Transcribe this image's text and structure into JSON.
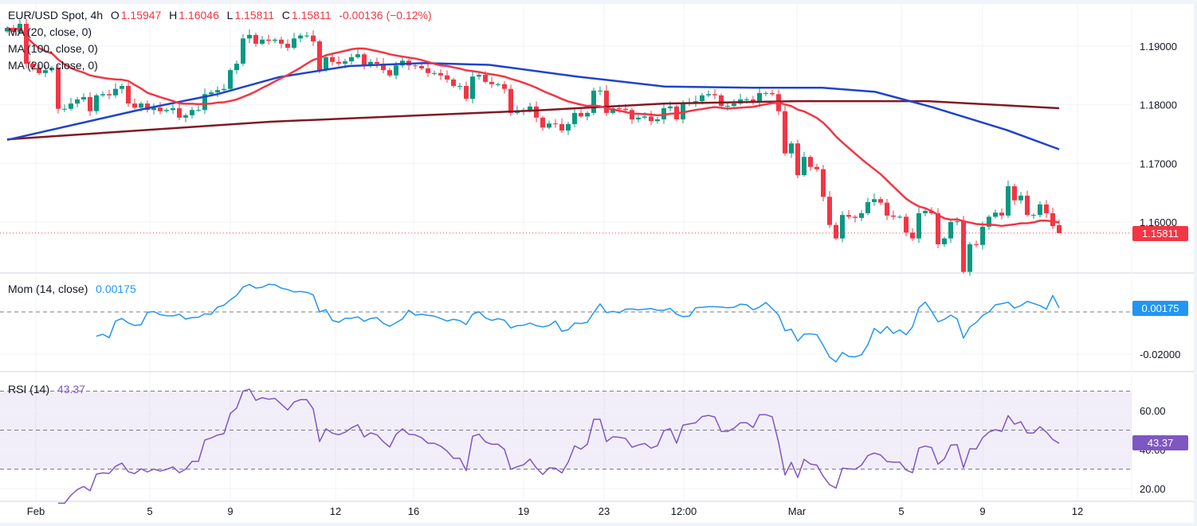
{
  "header": {
    "symbol": "EUR/USD Spot, 4h",
    "o_label": "O",
    "o_value": "1.15947",
    "h_label": "H",
    "h_value": "1.16046",
    "l_label": "L",
    "l_value": "1.15811",
    "c_label": "C",
    "c_value": "1.15811",
    "change": "-0.00136 (−0.12%)"
  },
  "indicators": {
    "ma20": "MA (20, close, 0)",
    "ma100": "MA (100, close, 0)",
    "ma200": "MA (200, close, 0)",
    "mom_label": "Mom (14, close)",
    "mom_value": "0.00175",
    "rsi_label": "RSI (14)",
    "rsi_value": "43.37"
  },
  "price_axis": [
    "1.19000",
    "1.18000",
    "1.17000",
    "1.16000"
  ],
  "last_price_tag": "1.15811",
  "mom_axis": [
    "-0.02000"
  ],
  "mom_tag": "0.00175",
  "rsi_axis": [
    "60.00",
    "40.00",
    "20.00"
  ],
  "rsi_tag": "43.37",
  "time_axis": [
    "Feb",
    "5",
    "9",
    "12",
    "16",
    "19",
    "23",
    "12:00",
    "Mar",
    "5",
    "9",
    "12"
  ],
  "colors": {
    "up": "#089981",
    "down": "#f23645",
    "ma20": "#f23645",
    "ma100": "#1e44cc",
    "ma200": "#801922",
    "mom": "#2196f3",
    "rsi": "#7e57c2"
  },
  "chart_data": {
    "type": "candlestick",
    "title": "EUR/USD Spot, 4h",
    "interval": "4h",
    "last_bar": {
      "open": 1.15947,
      "high": 1.16046,
      "low": 1.15811,
      "close": 1.15811
    },
    "ylim": [
      1.1505,
      1.1965
    ],
    "close": [
      1.1931,
      1.1924,
      1.1938,
      1.187,
      1.1863,
      1.1854,
      1.1859,
      1.1863,
      1.1793,
      1.1793,
      1.1802,
      1.1809,
      1.1813,
      1.1789,
      1.1816,
      1.1818,
      1.1816,
      1.1827,
      1.1832,
      1.1802,
      1.1795,
      1.1802,
      1.1791,
      1.1795,
      1.1789,
      1.1791,
      1.1794,
      1.1778,
      1.1782,
      1.1791,
      1.1791,
      1.1818,
      1.1821,
      1.1825,
      1.1827,
      1.1859,
      1.187,
      1.1913,
      1.1919,
      1.1904,
      1.1911,
      1.1909,
      1.1911,
      1.1904,
      1.1897,
      1.1913,
      1.1918,
      1.1918,
      1.1908,
      1.1859,
      1.1881,
      1.1873,
      1.187,
      1.1874,
      1.1881,
      1.1886,
      1.1867,
      1.1873,
      1.187,
      1.1859,
      1.185,
      1.1867,
      1.1875,
      1.1867,
      1.1866,
      1.1862,
      1.1854,
      1.1854,
      1.185,
      1.1843,
      1.1832,
      1.1832,
      1.181,
      1.1848,
      1.1851,
      1.1839,
      1.1835,
      1.1835,
      1.1827,
      1.1786,
      1.1789,
      1.1791,
      1.1797,
      1.1778,
      1.1761,
      1.1768,
      1.1767,
      1.1756,
      1.1767,
      1.1786,
      1.178,
      1.1786,
      1.1824,
      1.1824,
      1.1786,
      1.1794,
      1.1793,
      1.1791,
      1.1775,
      1.1778,
      1.178,
      1.1772,
      1.1775,
      1.1794,
      1.1797,
      1.1775,
      1.1802,
      1.1804,
      1.1806,
      1.1816,
      1.1818,
      1.1816,
      1.1798,
      1.1798,
      1.1802,
      1.1809,
      1.1809,
      1.1804,
      1.182,
      1.182,
      1.1818,
      1.1789,
      1.1717,
      1.1734,
      1.168,
      1.1711,
      1.1694,
      1.169,
      1.1643,
      1.1595,
      1.1572,
      1.1612,
      1.1609,
      1.1607,
      1.1615,
      1.1634,
      1.1639,
      1.1633,
      1.1611,
      1.1609,
      1.1609,
      1.1582,
      1.1572,
      1.1615,
      1.1619,
      1.1615,
      1.1562,
      1.1572,
      1.16,
      1.1601,
      1.1515,
      1.1562,
      1.1561,
      1.1592,
      1.1609,
      1.1616,
      1.1611,
      1.1661,
      1.1637,
      1.1645,
      1.1612,
      1.1612,
      1.163,
      1.1615,
      1.1593,
      1.15811
    ],
    "ma100_points": [
      [
        0,
        1.174
      ],
      [
        30,
        1.1791
      ],
      [
        48,
        1.1818
      ],
      [
        62,
        1.1847
      ],
      [
        78,
        1.1866
      ],
      [
        95,
        1.1871
      ],
      [
        110,
        1.1868
      ],
      [
        130,
        1.1848
      ],
      [
        150,
        1.1831
      ],
      [
        170,
        1.1829
      ],
      [
        186,
        1.1829
      ],
      [
        198,
        1.1822
      ],
      [
        211,
        1.1796
      ],
      [
        228,
        1.1757
      ],
      [
        240,
        1.1724
      ]
    ],
    "ma200_points": [
      [
        0,
        1.1741
      ],
      [
        60,
        1.1771
      ],
      [
        120,
        1.179
      ],
      [
        150,
        1.1802
      ],
      [
        180,
        1.1806
      ],
      [
        210,
        1.1806
      ],
      [
        240,
        1.1794
      ]
    ],
    "momentum_zero_line": 0,
    "rsi_bands": [
      30,
      50,
      70
    ],
    "rsi_ylim": [
      12,
      86
    ],
    "mom_ylim": [
      -0.0275,
      0.0185
    ]
  }
}
